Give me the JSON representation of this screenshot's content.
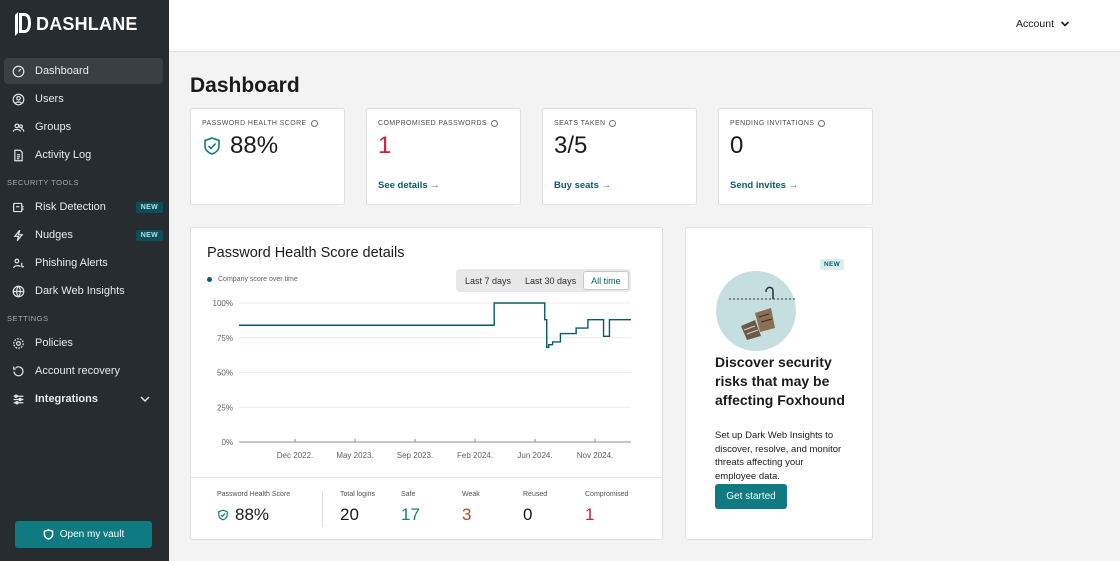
{
  "brand": {
    "name": "DASHLANE"
  },
  "sidebar": {
    "items": [
      {
        "label": "Dashboard",
        "icon": "gauge-icon"
      },
      {
        "label": "Users",
        "icon": "user-icon"
      },
      {
        "label": "Groups",
        "icon": "group-icon"
      },
      {
        "label": "Activity Log",
        "icon": "document-icon"
      }
    ],
    "security_title": "SECURITY TOOLS",
    "security_items": [
      {
        "label": "Risk Detection",
        "badge": "NEW",
        "icon": "risk-icon"
      },
      {
        "label": "Nudges",
        "badge": "NEW",
        "icon": "bolt-icon"
      },
      {
        "label": "Phishing Alerts",
        "icon": "phishing-icon"
      },
      {
        "label": "Dark Web Insights",
        "icon": "globe-icon"
      }
    ],
    "settings_title": "SETTINGS",
    "settings_items": [
      {
        "label": "Policies",
        "icon": "gear-icon"
      },
      {
        "label": "Account recovery",
        "icon": "recovery-icon"
      },
      {
        "label": "Integrations",
        "icon": "sliders-icon"
      }
    ],
    "vault_button": "Open my vault"
  },
  "header": {
    "account_label": "Account"
  },
  "page": {
    "title": "Dashboard"
  },
  "stats": [
    {
      "label": "PASSWORD HEALTH SCORE",
      "value": "88%",
      "link": ""
    },
    {
      "label": "COMPROMISED PASSWORDS",
      "value": "1",
      "link": "See details →"
    },
    {
      "label": "SEATS TAKEN",
      "value": "3/5",
      "link": "Buy seats →"
    },
    {
      "label": "PENDING INVITATIONS",
      "value": "0",
      "link": "Send invites →"
    }
  ],
  "chart_card": {
    "title": "Password Health Score details",
    "legend": "Company score over time",
    "ranges": [
      "Last 7 days",
      "Last 30 days",
      "All time"
    ],
    "active_range": "All time"
  },
  "chart_data": {
    "type": "line",
    "series": [
      {
        "name": "Company score over time",
        "x": [
          0,
          0.65,
          0.651,
          0.773,
          0.78,
          0.785,
          0.79,
          0.8,
          0.81,
          0.82,
          0.84,
          0.86,
          0.88,
          0.89,
          0.92,
          0.93,
          0.94,
          0.945,
          1.0
        ],
        "values": [
          84,
          84,
          100,
          100,
          88,
          68,
          70,
          72,
          72,
          78,
          78,
          82,
          82,
          88,
          88,
          76,
          76,
          88,
          88
        ]
      }
    ],
    "yticks": [
      "100%",
      "75%",
      "50%",
      "25%",
      "0%"
    ],
    "xticks": [
      "Dec 2022.",
      "May 2023.",
      "Sep 2023.",
      "Feb 2024.",
      "Jun 2024.",
      "Nov 2024."
    ],
    "ylim": [
      0,
      100
    ],
    "grid": true,
    "color": "#0a5a63"
  },
  "summary": {
    "health_label": "Password Health Score",
    "health_value": "88%",
    "items": [
      {
        "label": "Total logins",
        "value": "20"
      },
      {
        "label": "Safe",
        "value": "17"
      },
      {
        "label": "Weak",
        "value": "3"
      },
      {
        "label": "Reused",
        "value": "0"
      },
      {
        "label": "Compromised",
        "value": "1"
      }
    ]
  },
  "promo": {
    "badge": "NEW",
    "title": "Discover security risks that may be affecting Foxhound",
    "description": "Set up Dark Web Insights to discover, resolve, and monitor threats affecting your employee data.",
    "button": "Get started"
  }
}
